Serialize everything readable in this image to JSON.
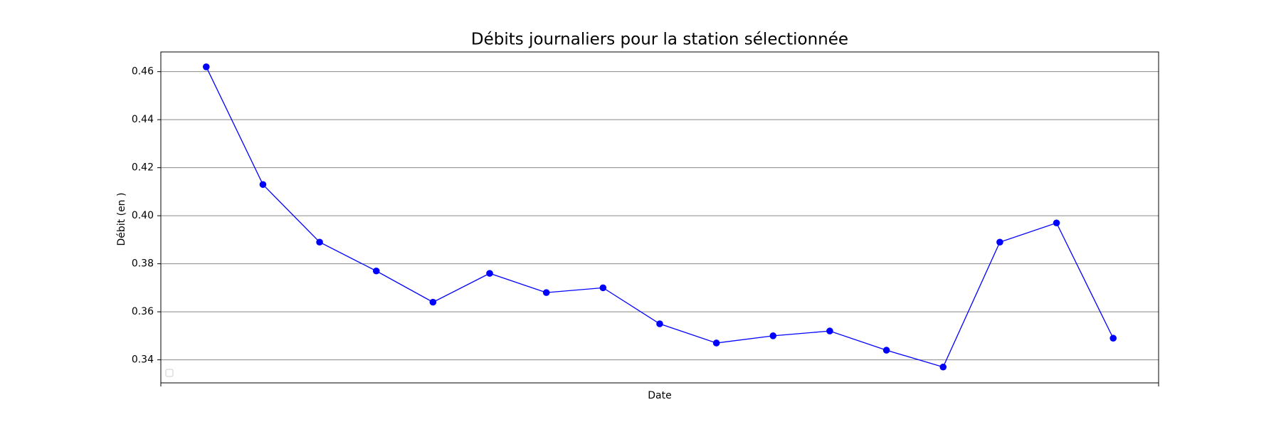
{
  "chart_data": {
    "type": "line",
    "title": "Débits journaliers pour la station sélectionnée",
    "x_label": "Date",
    "y_label": "Débit (en )",
    "categories": [
      null,
      null,
      null,
      null,
      null,
      null,
      null,
      null,
      null,
      null,
      null,
      null,
      null,
      null,
      null,
      null,
      null
    ],
    "series": [
      {
        "color": "#0000ff",
        "values": [
          0.462,
          0.413,
          0.389,
          0.377,
          0.364,
          0.376,
          0.368,
          0.37,
          0.355,
          0.347,
          0.35,
          0.352,
          0.344,
          0.337,
          0.389,
          0.397,
          0.349
        ]
      }
    ],
    "ylim": [
      0.3304,
      0.4682
    ],
    "yticks": [
      0.34,
      0.36,
      0.38,
      {
        "value": 0.4,
        "label": "0.40"
      },
      0.42,
      0.44,
      0.46
    ],
    "grid": true
  }
}
